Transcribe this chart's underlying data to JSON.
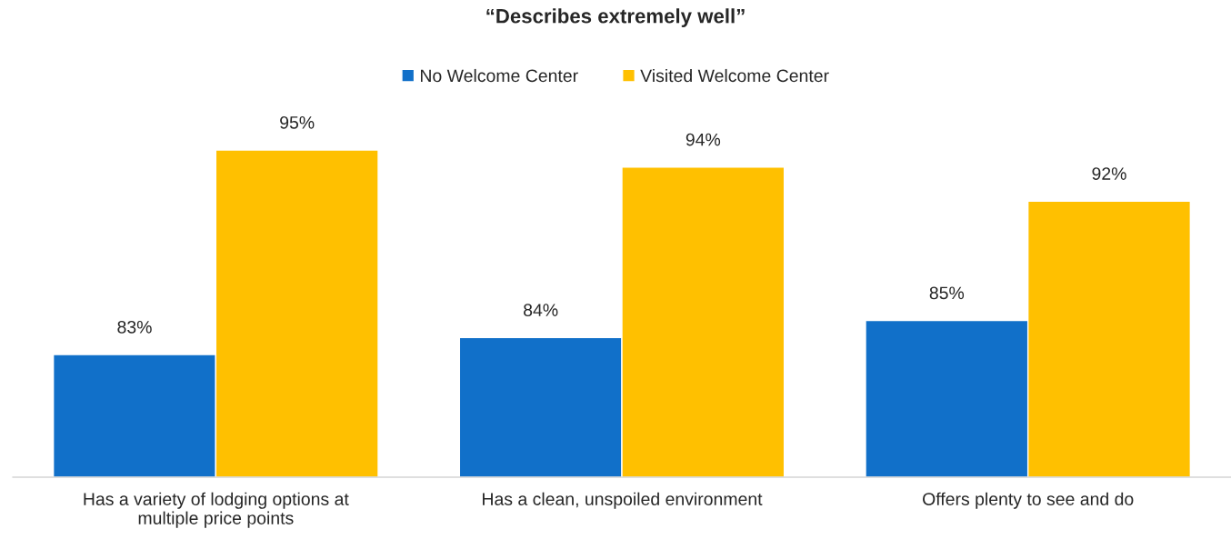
{
  "chart_data": {
    "type": "bar",
    "title": "“Describes extremely well”",
    "categories": [
      "Has a variety of lodging options at\nmultiple price points",
      "Has a clean, unspoiled environment",
      "Offers plenty to see and do"
    ],
    "series": [
      {
        "name": "No Welcome Center",
        "color": "#1170c9",
        "values": [
          83,
          84,
          85
        ],
        "value_labels": [
          "83%",
          "84%",
          "85%"
        ]
      },
      {
        "name": "Visited Welcome Center",
        "color": "#ffc000",
        "values": [
          95,
          94,
          92
        ],
        "value_labels": [
          "95%",
          "94%",
          "92%"
        ]
      }
    ],
    "ylim": [
      75.8,
      95
    ],
    "tick_labels": "x",
    "grid": false,
    "legend": "top"
  }
}
